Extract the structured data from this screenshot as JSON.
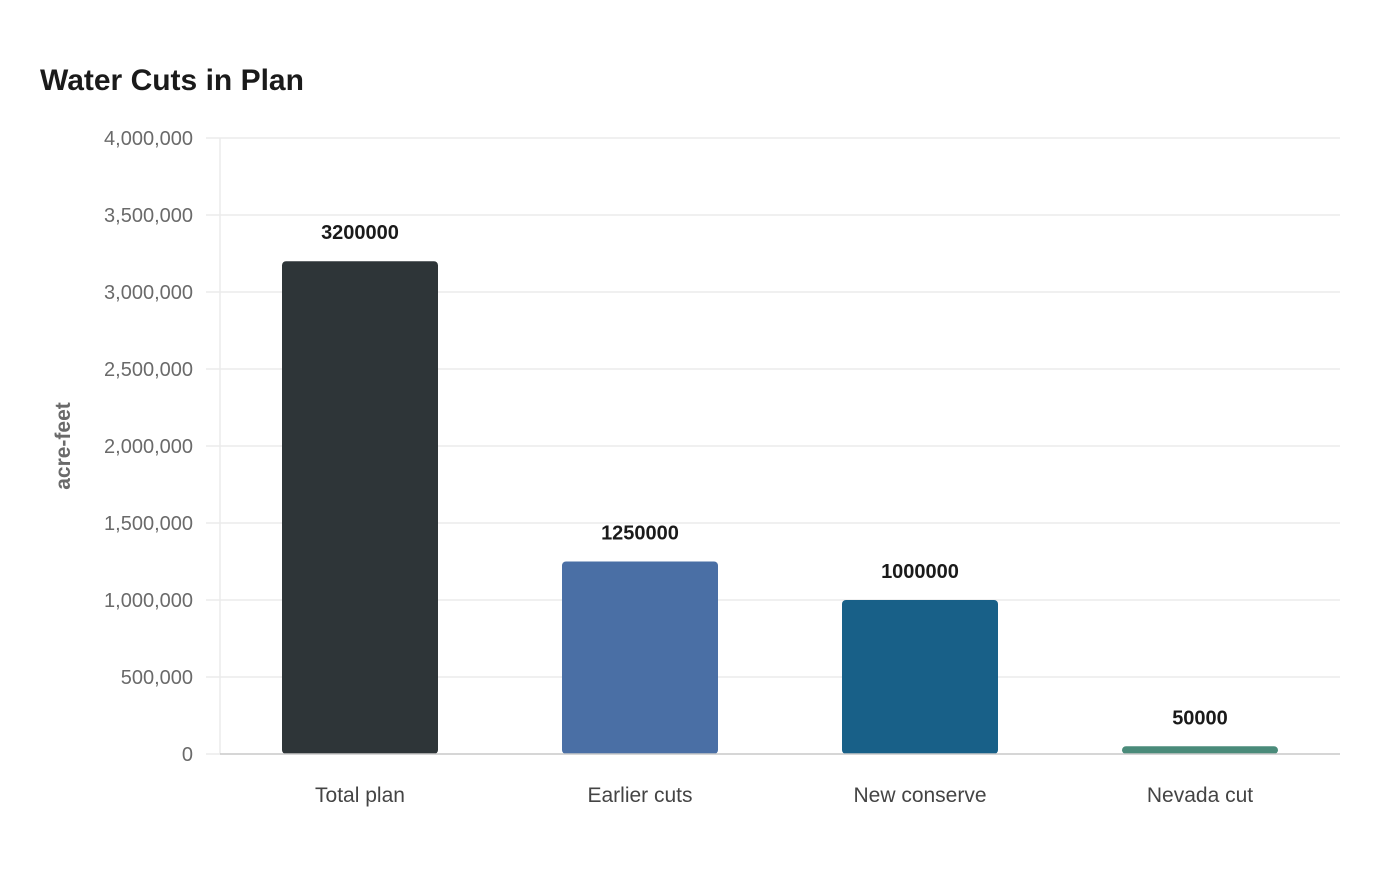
{
  "chart_data": {
    "type": "bar",
    "title": "Water Cuts in Plan",
    "xlabel": "",
    "ylabel": "acre-feet",
    "categories": [
      "Total plan",
      "Earlier cuts",
      "New conserve",
      "Nevada cut"
    ],
    "values": [
      3200000,
      1250000,
      1000000,
      50000
    ],
    "data_labels": [
      "3200000",
      "1250000",
      "1000000",
      "50000"
    ],
    "colors": [
      "#2e3538",
      "#4a6fa5",
      "#186088",
      "#4a8b7a"
    ],
    "ylim": [
      0,
      4000000
    ],
    "yticks": [
      0,
      500000,
      1000000,
      1500000,
      2000000,
      2500000,
      3000000,
      3500000,
      4000000
    ],
    "ytick_labels": [
      "0",
      "500,000",
      "1,000,000",
      "1,500,000",
      "2,000,000",
      "2,500,000",
      "3,000,000",
      "3,500,000",
      "4,000,000"
    ],
    "grid": true,
    "legend": "none"
  }
}
